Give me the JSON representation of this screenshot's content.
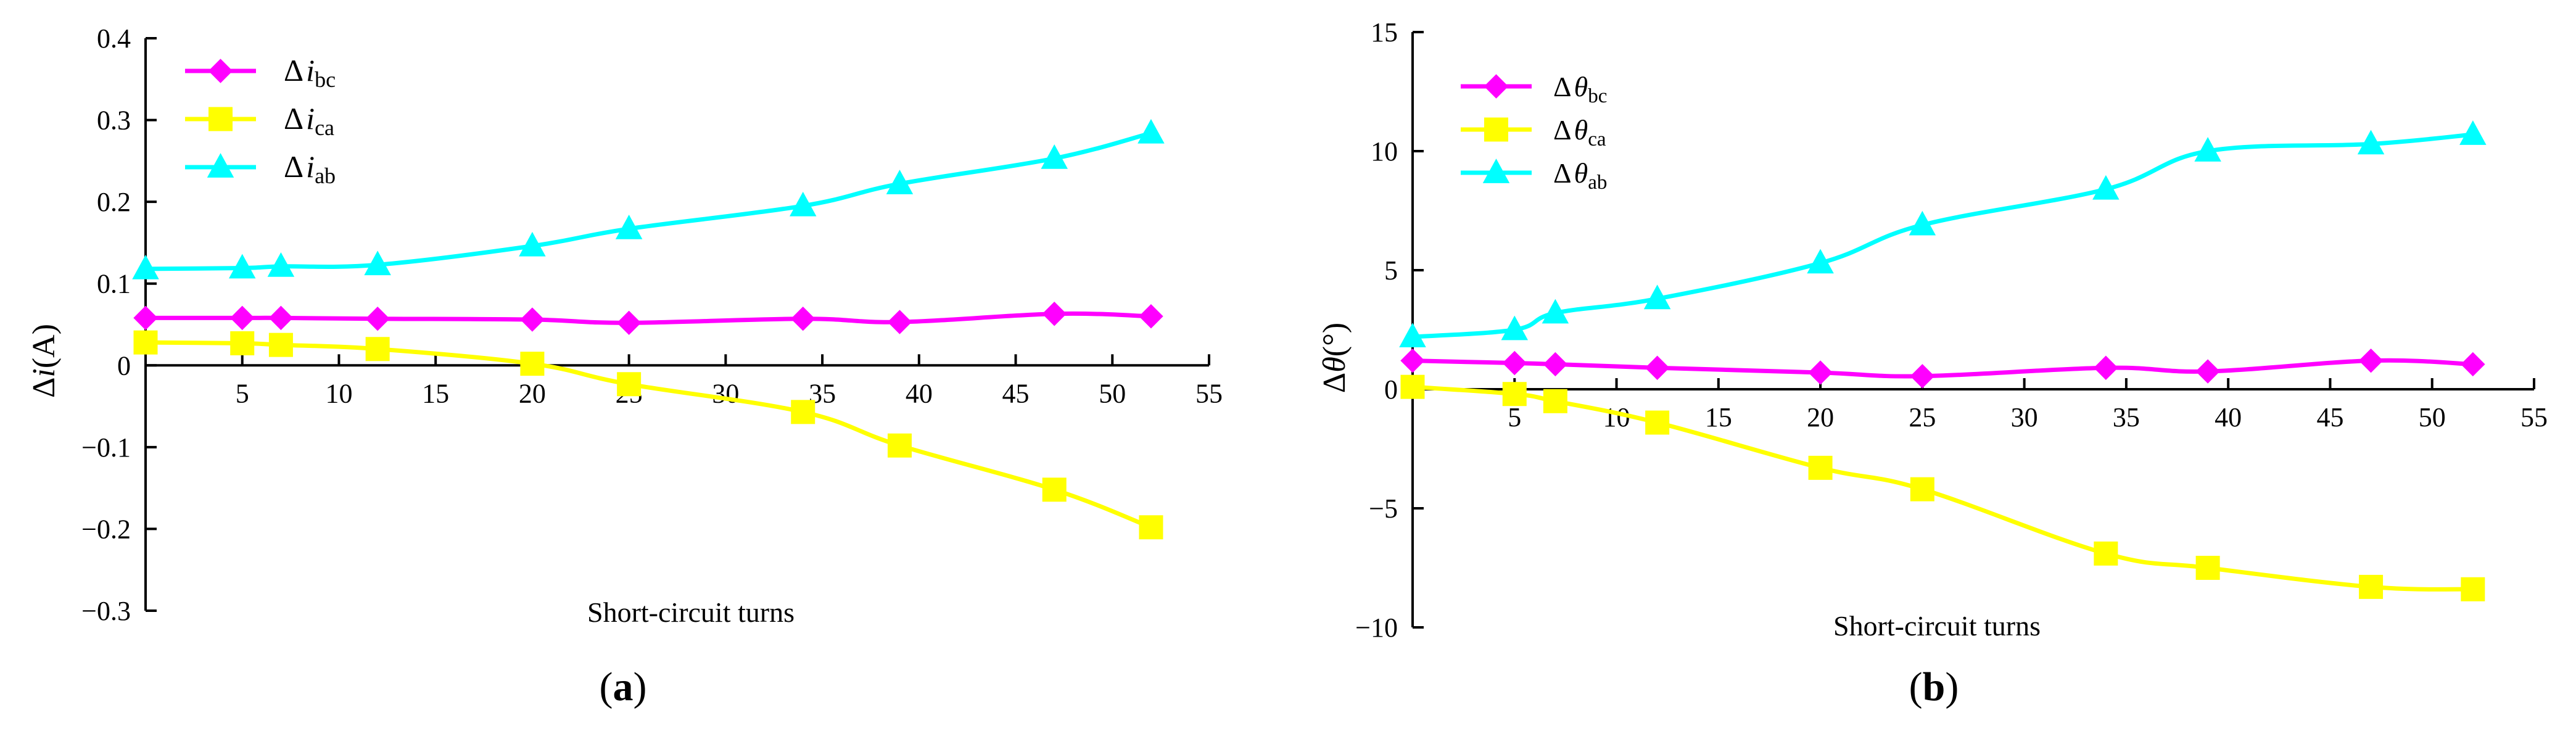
{
  "chart_data": [
    {
      "id": "a",
      "type": "line",
      "panel_label": "a",
      "xlabel": "Short-circuit turns",
      "ylabel": {
        "delta": "Δ",
        "var": "i",
        "unit": "(A)"
      },
      "xlim": [
        0,
        55
      ],
      "ylim": [
        -0.3,
        0.4
      ],
      "xticks": [
        5,
        10,
        15,
        20,
        25,
        30,
        35,
        40,
        45,
        50,
        55
      ],
      "yticks": [
        -0.3,
        -0.2,
        -0.1,
        0,
        0.1,
        0.2,
        0.3,
        0.4
      ],
      "ytick_labels": [
        "−0.3",
        "−0.2",
        "−0.1",
        "0",
        "0.1",
        "0.2",
        "0.3",
        "0.4"
      ],
      "xtick_labels": [
        "5",
        "10",
        "15",
        "20",
        "25",
        "30",
        "35",
        "40",
        "45",
        "50",
        "55"
      ],
      "series": [
        {
          "name": "Δ i bc",
          "delta": "Δ",
          "var": "i",
          "sub": "bc",
          "color": "#ff00ff",
          "marker": "diamond",
          "x": [
            0,
            5,
            7,
            12,
            20,
            25,
            34,
            39,
            47,
            52
          ],
          "y": [
            0.058,
            0.058,
            0.058,
            0.057,
            0.056,
            0.052,
            0.057,
            0.053,
            0.063,
            0.06
          ]
        },
        {
          "name": "Δ i ca",
          "delta": "Δ",
          "var": "i",
          "sub": "ca",
          "color": "#ffff00",
          "marker": "square",
          "x": [
            0,
            5,
            7,
            12,
            20,
            25,
            34,
            39,
            47,
            52
          ],
          "y": [
            0.028,
            0.027,
            0.025,
            0.02,
            0.002,
            -0.023,
            -0.057,
            -0.098,
            -0.152,
            -0.198
          ]
        },
        {
          "name": "Δ i ab",
          "delta": "Δ",
          "var": "i",
          "sub": "ab",
          "color": "#00ffff",
          "marker": "triangle",
          "x": [
            0,
            5,
            7,
            12,
            20,
            25,
            34,
            39,
            47,
            52
          ],
          "y": [
            0.118,
            0.119,
            0.121,
            0.123,
            0.146,
            0.167,
            0.195,
            0.222,
            0.253,
            0.284
          ]
        }
      ]
    },
    {
      "id": "b",
      "type": "line",
      "panel_label": "b",
      "xlabel": "Short-circuit turns",
      "ylabel": {
        "delta": "Δ",
        "var": "θ",
        "unit": "(°)"
      },
      "xlim": [
        0,
        55
      ],
      "ylim": [
        -10,
        15
      ],
      "xticks": [
        5,
        10,
        15,
        20,
        25,
        30,
        35,
        40,
        45,
        50,
        55
      ],
      "yticks": [
        -10,
        -5,
        0,
        5,
        10,
        15
      ],
      "ytick_labels": [
        "−10",
        "−5",
        "0",
        "5",
        "10",
        "15"
      ],
      "xtick_labels": [
        "5",
        "10",
        "15",
        "20",
        "25",
        "30",
        "35",
        "40",
        "45",
        "50",
        "55"
      ],
      "series": [
        {
          "name": "Δ θ bc",
          "delta": "Δ",
          "var": "θ",
          "sub": "bc",
          "color": "#ff00ff",
          "marker": "diamond",
          "x": [
            0,
            5,
            7,
            12,
            20,
            25,
            34,
            39,
            47,
            52
          ],
          "y": [
            1.2,
            1.1,
            1.05,
            0.9,
            0.7,
            0.55,
            0.9,
            0.75,
            1.2,
            1.05
          ]
        },
        {
          "name": "Δ θ ca",
          "delta": "Δ",
          "var": "θ",
          "sub": "ca",
          "color": "#ffff00",
          "marker": "square",
          "x": [
            0,
            5,
            7,
            12,
            20,
            25,
            34,
            39,
            47,
            52
          ],
          "y": [
            0.1,
            -0.2,
            -0.5,
            -1.4,
            -3.3,
            -4.2,
            -6.9,
            -7.5,
            -8.3,
            -8.4
          ]
        },
        {
          "name": "Δ θ ab",
          "delta": "Δ",
          "var": "θ",
          "sub": "ab",
          "color": "#00ffff",
          "marker": "triangle",
          "x": [
            0,
            5,
            7,
            12,
            20,
            25,
            34,
            39,
            47,
            52
          ],
          "y": [
            2.2,
            2.5,
            3.2,
            3.8,
            5.3,
            6.9,
            8.4,
            10.0,
            10.3,
            10.7
          ]
        }
      ]
    }
  ]
}
